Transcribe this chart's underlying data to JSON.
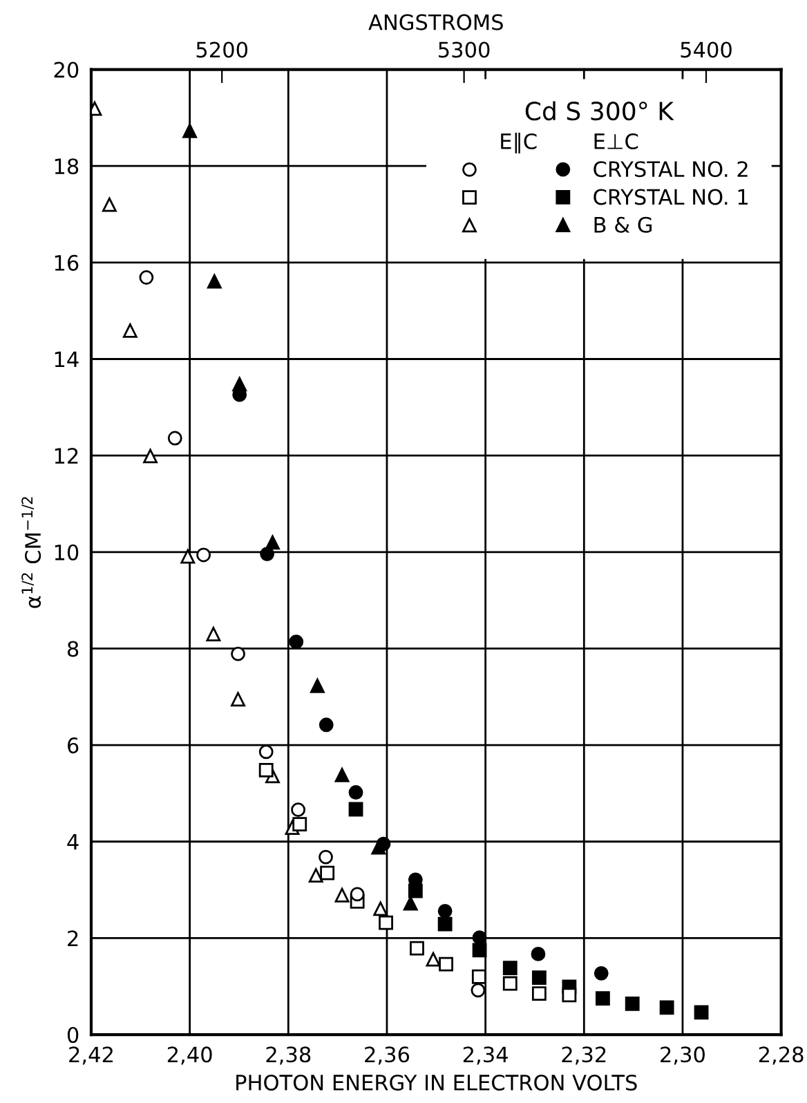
{
  "chart_data": {
    "type": "scatter",
    "xlabel": "PHOTON ENERGY IN ELECTRON VOLTS",
    "ylabel": "α$^{1/2}$ CM$^{−1/2}$",
    "x2label": "ANGSTROMS",
    "legend_title": "Cd S 300° K",
    "annotations": [
      "E∥C",
      "E⊥C"
    ],
    "xlim": [
      2.42,
      2.28
    ],
    "xticks": [
      {
        "value": 2.42,
        "label": "2,42"
      },
      {
        "value": 2.4,
        "label": "2,40"
      },
      {
        "value": 2.38,
        "label": "2,38"
      },
      {
        "value": 2.36,
        "label": "2,36"
      },
      {
        "value": 2.34,
        "label": "2,34"
      },
      {
        "value": 2.32,
        "label": "2,32"
      },
      {
        "value": 2.3,
        "label": "2,30"
      },
      {
        "value": 2.28,
        "label": "2,28"
      }
    ],
    "x2lim": [
      5146,
      5431
    ],
    "x2ticks": [
      5200,
      5300,
      5400
    ],
    "ylim": [
      0,
      20
    ],
    "yticks": [
      0,
      2,
      4,
      6,
      8,
      10,
      12,
      14,
      16,
      18,
      20
    ],
    "grid": true,
    "legend": "top right",
    "series": [
      {
        "marker": "circle",
        "color": "#ffffff",
        "x": [
          2.4088,
          2.403,
          2.3972,
          2.3902,
          2.3845,
          2.378,
          2.3724,
          2.366,
          2.3607,
          2.3415
        ],
        "values": [
          15.69,
          12.36,
          9.94,
          7.89,
          5.86,
          4.66,
          3.68,
          2.91,
          null,
          0.92
        ]
      },
      {
        "marker": "square",
        "color": "#ffffff",
        "x": [
          2.3845,
          2.3777,
          2.3721,
          2.366,
          2.3602,
          2.3539,
          2.348,
          2.3413,
          2.335,
          2.3291,
          2.323
        ],
        "values": [
          5.48,
          4.36,
          3.35,
          2.76,
          2.32,
          1.79,
          1.46,
          1.2,
          1.06,
          0.85,
          0.82
        ]
      },
      {
        "marker": "triangle",
        "color": "#ffffff",
        "x": [
          2.4193,
          2.4163,
          2.4121,
          2.408,
          2.4004,
          2.3952,
          2.3902,
          2.3832,
          2.3792,
          2.3744,
          2.3691,
          2.3613,
          2.3506
        ],
        "values": [
          19.19,
          17.2,
          14.59,
          11.99,
          9.91,
          8.3,
          6.95,
          5.36,
          4.29,
          3.3,
          2.89,
          2.61,
          1.56
        ]
      },
      {
        "name": "CRYSTAL NO. 2",
        "marker": "circle",
        "color": "#000000",
        "x": [
          2.3899,
          2.3843,
          2.3784,
          2.3723,
          2.3663,
          2.3607,
          2.3542,
          2.3482,
          2.3412,
          2.3293,
          2.3165
        ],
        "values": [
          13.26,
          9.96,
          8.14,
          6.42,
          5.02,
          3.95,
          3.21,
          2.56,
          2.01,
          1.67,
          1.27
        ]
      },
      {
        "name": "CRYSTAL NO. 1",
        "marker": "square",
        "color": "#000000",
        "x": [
          2.3663,
          2.3542,
          2.3482,
          2.3412,
          2.335,
          2.3291,
          2.323,
          2.3162,
          2.3102,
          2.3032,
          2.2962
        ],
        "values": [
          4.67,
          2.98,
          2.29,
          1.75,
          1.38,
          1.18,
          0.99,
          0.75,
          0.64,
          0.56,
          0.46
        ]
      },
      {
        "name": "B & G",
        "marker": "triangle",
        "color": "#000000",
        "x": [
          2.4,
          2.395,
          2.3899,
          2.3832,
          2.3741,
          2.3691,
          2.3617,
          2.3552
        ],
        "values": [
          18.73,
          15.61,
          13.48,
          10.2,
          7.23,
          5.38,
          3.88,
          2.72
        ]
      }
    ]
  }
}
